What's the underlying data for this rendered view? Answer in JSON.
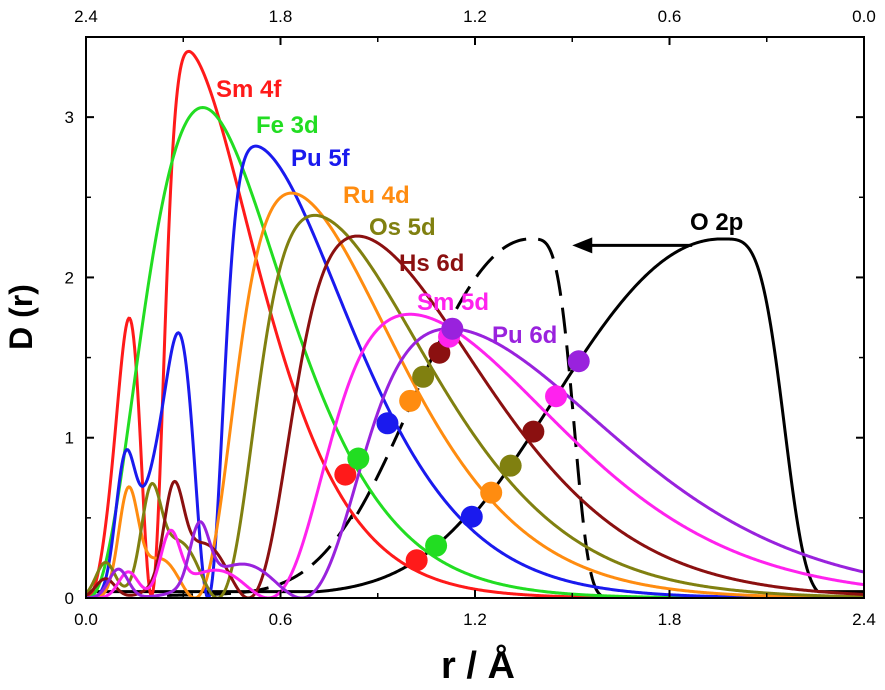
{
  "chart_data": {
    "type": "line",
    "xlabel": "r / Å",
    "ylabel": "D (r)",
    "xlim": [
      0.0,
      2.4
    ],
    "ylim": [
      0.0,
      3.5
    ],
    "x_ticks": [
      "0.0",
      "0.6",
      "1.2",
      "1.8",
      "2.4"
    ],
    "x_tick_values": [
      0.0,
      0.6,
      1.2,
      1.8,
      2.4
    ],
    "y_ticks": [
      "0",
      "1",
      "2",
      "3"
    ],
    "y_tick_values": [
      0,
      1,
      2,
      3
    ],
    "top_x_ticks": [
      "2.4",
      "1.8",
      "1.2",
      "0.6",
      "0.0"
    ],
    "top_x_tick_values": [
      0.0,
      0.6,
      1.2,
      1.8,
      2.4
    ],
    "series": [
      {
        "name": "Sm 4f",
        "color": "#ff1a1a",
        "peak_x": 0.3,
        "peak_y": 3.44,
        "right_width": 0.24,
        "inner": [
          [
            0.13,
            0.24
          ]
        ],
        "marker": [
          0.8,
          0.77
        ]
      },
      {
        "name": "Fe 3d",
        "color": "#22dd22",
        "peak_x": 0.36,
        "peak_y": 3.06,
        "right_width": 0.27,
        "inner": [],
        "marker": [
          0.84,
          0.87
        ]
      },
      {
        "name": "Pu 5f",
        "color": "#1a1aee",
        "peak_x": 0.51,
        "peak_y": 2.83,
        "right_width": 0.3,
        "inner": [
          [
            0.12,
            0.71
          ],
          [
            0.28,
            0.18
          ]
        ],
        "marker": [
          0.93,
          1.09
        ]
      },
      {
        "name": "Ru 4d",
        "color": "#ff8c10",
        "peak_x": 0.62,
        "peak_y": 2.54,
        "right_width": 0.33,
        "inner": [
          [
            0.13,
            0.62
          ]
        ],
        "marker": [
          1.0,
          1.23
        ]
      },
      {
        "name": "Os 5d",
        "color": "#808010",
        "peak_x": 0.69,
        "peak_y": 2.4,
        "right_width": 0.36,
        "inner": [
          [
            0.06,
            0.22
          ],
          [
            0.2,
            0.52
          ]
        ],
        "marker": [
          1.04,
          1.38
        ]
      },
      {
        "name": "Hs 6d",
        "color": "#8b1010",
        "peak_x": 0.82,
        "peak_y": 2.27,
        "right_width": 0.39,
        "inner": [
          [
            0.06,
            0.12
          ],
          [
            0.27,
            0.53
          ]
        ],
        "marker": [
          1.09,
          1.53
        ]
      },
      {
        "name": "Sm 5d",
        "color": "#ff22ee",
        "peak_x": 0.98,
        "peak_y": 1.78,
        "right_width": 0.46,
        "inner": [
          [
            0.13,
            0.16
          ],
          [
            0.26,
            0.36
          ]
        ],
        "marker": [
          1.12,
          1.63
        ]
      },
      {
        "name": "Pu 6d",
        "color": "#9922dd",
        "peak_x": 1.1,
        "peak_y": 1.69,
        "right_width": 0.5,
        "inner": [
          [
            0.1,
            0.18
          ],
          [
            0.35,
            0.37
          ]
        ],
        "marker": [
          1.13,
          1.68
        ]
      }
    ],
    "o2p_series": {
      "name": "O 2p",
      "color": "#000000",
      "peak_x": 1.96,
      "peak_y": 2.24
    },
    "o2p_dashed_series": {
      "style": "dashed",
      "color": "#000000",
      "peak_x": 1.37,
      "peak_y": 2.24
    },
    "o2p_markers_x": [
      1.02,
      1.08,
      1.19,
      1.25,
      1.31,
      1.38,
      1.45,
      1.52
    ],
    "annotation_arrow": {
      "from_x": 1.87,
      "to_x": 1.5,
      "y": 2.2
    }
  }
}
